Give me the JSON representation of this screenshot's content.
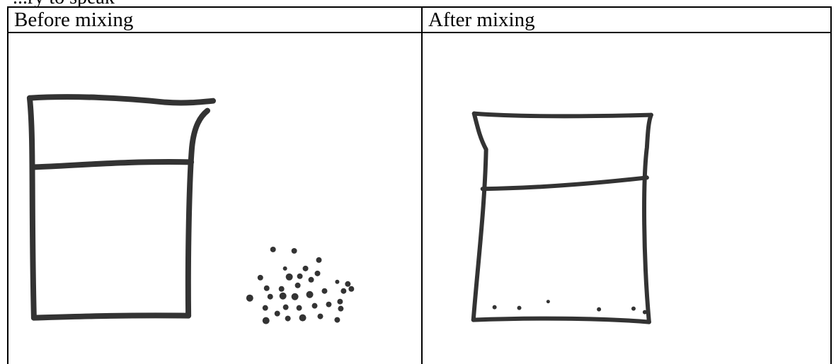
{
  "document": {
    "top_text": "...ry to speak",
    "table": {
      "columns": [
        {
          "label": "Before mixing"
        },
        {
          "label": "After mixing"
        }
      ]
    },
    "drawings": {
      "before": {
        "description_icon": "beaker-with-water-and-particles-icon"
      },
      "after": {
        "description_icon": "beaker-with-settled-particles-icon"
      }
    }
  }
}
